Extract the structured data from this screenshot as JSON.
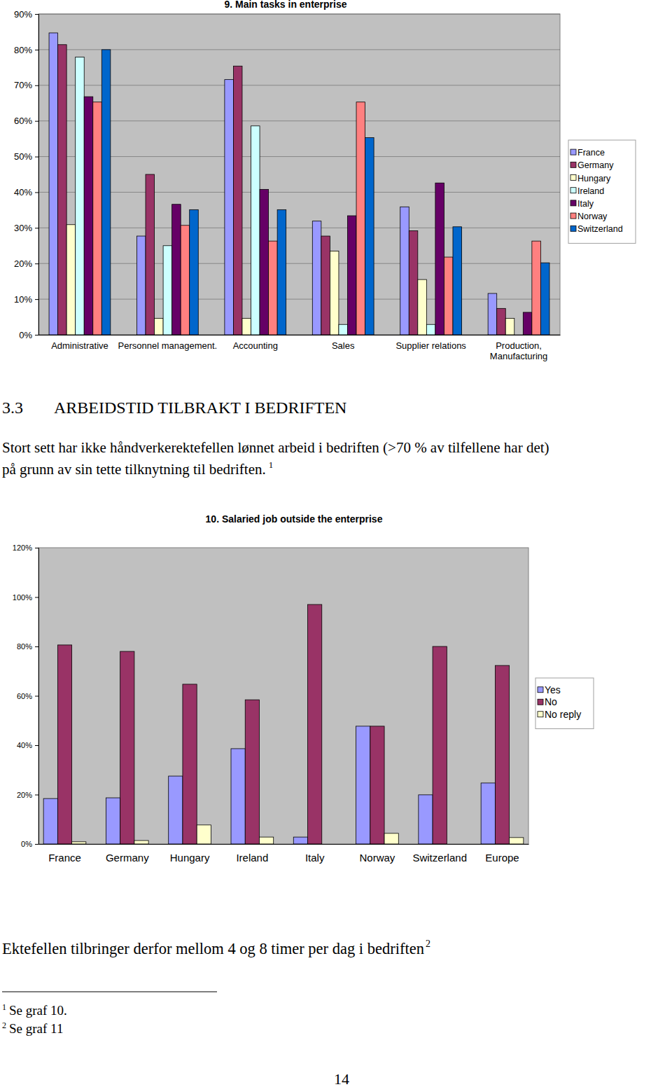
{
  "chart_data": [
    {
      "type": "bar",
      "title": "9. Main tasks in enterprise",
      "categories": [
        "Administrative",
        "Personnel management.",
        "Accounting",
        "Sales",
        "Supplier relations",
        "Production, Manufacturing"
      ],
      "series": [
        {
          "name": "France",
          "color": "#9999ff",
          "values": [
            84.7,
            27.7,
            71.6,
            31.9,
            35.9,
            11.6
          ]
        },
        {
          "name": "Germany",
          "color": "#993366",
          "values": [
            81.4,
            45.0,
            75.4,
            27.7,
            29.2,
            7.4
          ]
        },
        {
          "name": "Hungary",
          "color": "#ffffcc",
          "values": [
            30.9,
            4.6,
            4.6,
            23.5,
            15.5,
            4.6
          ]
        },
        {
          "name": "Ireland",
          "color": "#ccffff",
          "values": [
            77.9,
            25.0,
            58.6,
            2.9,
            2.9,
            0
          ]
        },
        {
          "name": "Italy",
          "color": "#660066",
          "values": [
            66.8,
            36.6,
            40.8,
            33.4,
            42.6,
            6.3
          ]
        },
        {
          "name": "Norway",
          "color": "#ff8080",
          "values": [
            65.3,
            30.7,
            26.3,
            65.3,
            21.8,
            26.3
          ]
        },
        {
          "name": "Switzerland",
          "color": "#0066cc",
          "values": [
            80.0,
            35.1,
            35.1,
            55.3,
            30.3,
            20.2
          ]
        }
      ],
      "ylim": [
        0,
        90
      ],
      "yticks": [
        {
          "value": 0,
          "label": "0%"
        },
        {
          "value": 10,
          "label": "10%"
        },
        {
          "value": 20,
          "label": "20%"
        },
        {
          "value": 30,
          "label": "30%"
        },
        {
          "value": 40,
          "label": "40%"
        },
        {
          "value": 50,
          "label": "50%"
        },
        {
          "value": 60,
          "label": "60%"
        },
        {
          "value": 70,
          "label": "70%"
        },
        {
          "value": 80,
          "label": "80%"
        },
        {
          "value": 90,
          "label": "90%"
        }
      ],
      "grid": true,
      "legend": "right"
    },
    {
      "type": "bar",
      "title": "10. Salaried job outside the enterprise",
      "categories": [
        "France",
        "Germany",
        "Hungary",
        "Ireland",
        "Italy",
        "Norway",
        "Switzerland",
        "Europe"
      ],
      "series": [
        {
          "name": "Yes",
          "color": "#9999ff",
          "values": [
            18.4,
            18.7,
            27.5,
            38.6,
            2.8,
            47.7,
            19.9,
            24.7
          ]
        },
        {
          "name": "No",
          "color": "#993366",
          "values": [
            80.6,
            78.0,
            64.7,
            58.4,
            97.0,
            47.7,
            80.0,
            72.3
          ]
        },
        {
          "name": "No reply",
          "color": "#ffffcc",
          "values": [
            0.9,
            1.4,
            7.7,
            2.8,
            0,
            4.3,
            0,
            2.6
          ]
        }
      ],
      "ylim": [
        0,
        120
      ],
      "yticks": [
        {
          "value": 0,
          "label": "0%"
        },
        {
          "value": 20,
          "label": "20%"
        },
        {
          "value": 40,
          "label": "40%"
        },
        {
          "value": 60,
          "label": "60%"
        },
        {
          "value": 80,
          "label": "80%"
        },
        {
          "value": 100,
          "label": "100%"
        },
        {
          "value": 120,
          "label": "120%"
        }
      ],
      "grid": false,
      "legend": "right"
    }
  ],
  "document": {
    "section": {
      "number": "3.3",
      "title": "ARBEIDSTID TILBRAKT I BEDRIFTEN"
    },
    "paragraph": {
      "lines": [
        "Stort sett har ikke håndverkerektefellen lønnet arbeid i bedriften (>70 % av tilfellene har det)",
        "på grunn av sin tette tilknytning til bedriften."
      ],
      "footnote_ref": "1"
    },
    "sentence": {
      "text": "Ektefellen tilbringer derfor mellom 4 og 8 timer per dag i bedriften",
      "footnote_ref": "2"
    },
    "footnotes": [
      {
        "mark": "1",
        "text": "Se graf 10."
      },
      {
        "mark": "2",
        "text": "Se graf 11"
      }
    ],
    "page_number": "14"
  }
}
